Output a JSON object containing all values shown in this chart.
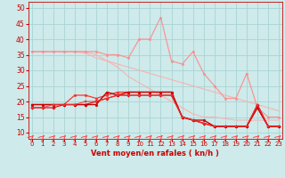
{
  "xlabel": "Vent moyen/en rafales ( kn/h )",
  "bg_color": "#ceeaea",
  "grid_color": "#aad4d4",
  "x_ticks": [
    0,
    1,
    2,
    3,
    4,
    5,
    6,
    7,
    8,
    9,
    10,
    11,
    12,
    13,
    14,
    15,
    16,
    17,
    18,
    19,
    20,
    21,
    22,
    23
  ],
  "ylim": [
    8,
    52
  ],
  "xlim": [
    -0.3,
    23.3
  ],
  "yticks": [
    10,
    15,
    20,
    25,
    30,
    35,
    40,
    45,
    50
  ],
  "series": [
    {
      "y": [
        36,
        36,
        36,
        36,
        36,
        35.5,
        34,
        33,
        32,
        31,
        30,
        29,
        28,
        27,
        26,
        25,
        24,
        23,
        22,
        21,
        20,
        19,
        18,
        17
      ],
      "color": "#ffaaaa",
      "linewidth": 0.8,
      "marker": null,
      "alpha": 0.85
    },
    {
      "y": [
        36,
        36,
        36,
        36,
        36,
        36,
        35,
        33,
        31,
        28,
        26,
        24,
        22,
        20,
        18,
        16,
        15,
        15,
        14.5,
        14,
        14,
        14,
        14,
        14
      ],
      "color": "#ffaaaa",
      "linewidth": 0.8,
      "marker": null,
      "alpha": 0.85
    },
    {
      "y": [
        36,
        36,
        36,
        36,
        36,
        36,
        36,
        35,
        35,
        34,
        40,
        40,
        47,
        33,
        32,
        36,
        29,
        25,
        21,
        21,
        29,
        18,
        15,
        15
      ],
      "color": "#ff8888",
      "linewidth": 0.9,
      "marker": "o",
      "markersize": 1.8,
      "alpha": 0.85
    },
    {
      "y": [
        19,
        19,
        19,
        19,
        22,
        22,
        21,
        22,
        23,
        23,
        23,
        23,
        23,
        23,
        15,
        14,
        13,
        12,
        12,
        12,
        12,
        18,
        12,
        12
      ],
      "color": "#ff2222",
      "linewidth": 0.9,
      "marker": "o",
      "markersize": 1.8,
      "alpha": 0.9
    },
    {
      "y": [
        18,
        18,
        18,
        19,
        19,
        19,
        20,
        21,
        22,
        22,
        22,
        22,
        22,
        22,
        15,
        14,
        13,
        12,
        12,
        12,
        12,
        19,
        12,
        12
      ],
      "color": "#dd0000",
      "linewidth": 0.9,
      "marker": "D",
      "markersize": 1.8,
      "alpha": 0.9
    },
    {
      "y": [
        19,
        19,
        19,
        19,
        19,
        19,
        19,
        23,
        22,
        23,
        23,
        23,
        23,
        23,
        15,
        14,
        14,
        12,
        12,
        12,
        12,
        18,
        12,
        12
      ],
      "color": "#cc0000",
      "linewidth": 1.0,
      "marker": "o",
      "markersize": 2.0,
      "alpha": 1.0
    },
    {
      "y": [
        18,
        18,
        19,
        19,
        19,
        20,
        20,
        21,
        22,
        22,
        22,
        22,
        22,
        22,
        15,
        14,
        13,
        12,
        12,
        12,
        12,
        19,
        12,
        12
      ],
      "color": "#ee3333",
      "linewidth": 0.8,
      "marker": "s",
      "markersize": 1.6,
      "alpha": 0.85
    }
  ],
  "arrow_color": "#ff4444"
}
